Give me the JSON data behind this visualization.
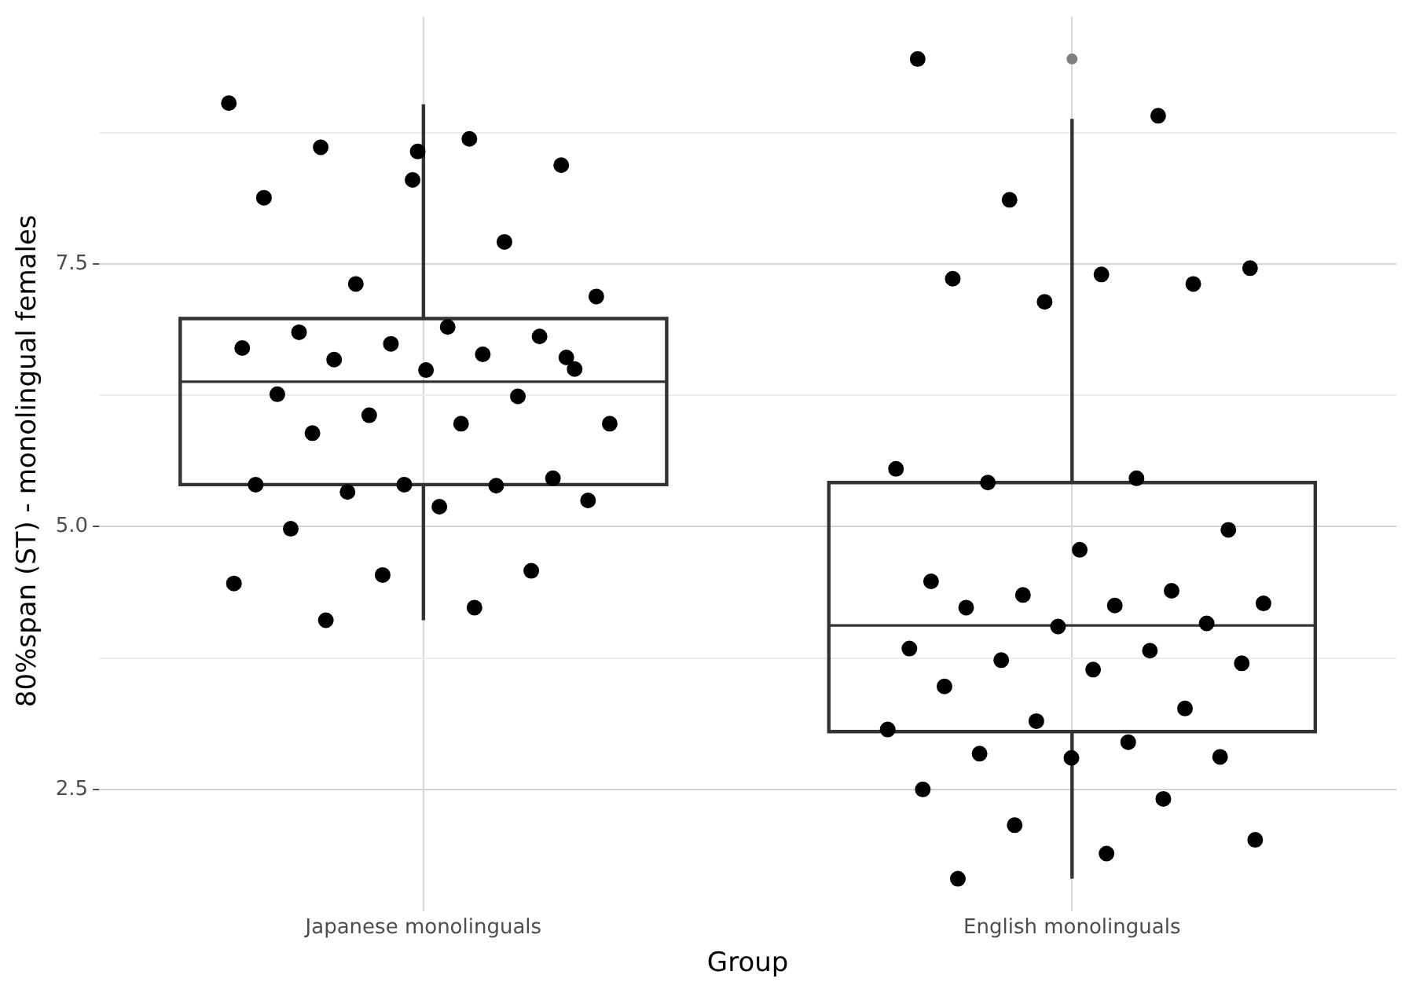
{
  "chart_data": {
    "type": "box",
    "xlabel": "Group",
    "ylabel": "80%span (ST) - monolingual females",
    "categories": [
      "Japanese monolinguals",
      "English monolinguals"
    ],
    "boxes": [
      {
        "low": 4.11,
        "q1": 5.4,
        "median": 6.38,
        "q3": 6.98,
        "high": 9.02
      },
      {
        "low": 1.65,
        "q1": 3.05,
        "median": 4.06,
        "q3": 5.42,
        "high": 8.88,
        "outliers": [
          9.45
        ]
      }
    ],
    "color": "#333333",
    "series": [
      {
        "type": "scatter",
        "color": "#000000",
        "x": [
          "Japanese monolinguals",
          "Japanese monolinguals",
          "Japanese monolinguals",
          "Japanese monolinguals",
          "Japanese monolinguals",
          "Japanese monolinguals",
          "Japanese monolinguals",
          "Japanese monolinguals",
          "Japanese monolinguals",
          "Japanese monolinguals",
          "Japanese monolinguals",
          "Japanese monolinguals",
          "Japanese monolinguals",
          "Japanese monolinguals",
          "Japanese monolinguals",
          "Japanese monolinguals",
          "Japanese monolinguals",
          "Japanese monolinguals",
          "Japanese monolinguals",
          "Japanese monolinguals",
          "Japanese monolinguals",
          "Japanese monolinguals",
          "Japanese monolinguals",
          "Japanese monolinguals",
          "Japanese monolinguals",
          "Japanese monolinguals",
          "Japanese monolinguals",
          "Japanese monolinguals",
          "Japanese monolinguals",
          "Japanese monolinguals",
          "Japanese monolinguals",
          "Japanese monolinguals",
          "Japanese monolinguals",
          "Japanese monolinguals",
          "Japanese monolinguals",
          "Japanese monolinguals",
          "Japanese monolinguals",
          "Japanese monolinguals",
          "Japanese monolinguals",
          "English monolinguals",
          "English monolinguals",
          "English monolinguals",
          "English monolinguals",
          "English monolinguals",
          "English monolinguals",
          "English monolinguals",
          "English monolinguals",
          "English monolinguals",
          "English monolinguals",
          "English monolinguals",
          "English monolinguals",
          "English monolinguals",
          "English monolinguals",
          "English monolinguals",
          "English monolinguals",
          "English monolinguals",
          "English monolinguals",
          "English monolinguals",
          "English monolinguals",
          "English monolinguals",
          "English monolinguals",
          "English monolinguals",
          "English monolinguals",
          "English monolinguals",
          "English monolinguals",
          "English monolinguals",
          "English monolinguals",
          "English monolinguals",
          "English monolinguals",
          "English monolinguals",
          "English monolinguals",
          "English monolinguals",
          "English monolinguals",
          "English monolinguals",
          "English monolinguals",
          "English monolinguals",
          "English monolinguals",
          "English monolinguals",
          "English monolinguals"
        ],
        "values": [
          9.03,
          8.69,
          8.61,
          8.44,
          8.3,
          8.13,
          7.71,
          7.31,
          7.19,
          6.9,
          6.85,
          6.81,
          6.74,
          6.7,
          6.64,
          6.59,
          6.5,
          6.49,
          6.26,
          6.24,
          6.06,
          5.98,
          5.98,
          5.89,
          5.46,
          5.4,
          5.4,
          5.39,
          5.33,
          5.25,
          5.19,
          4.98,
          4.58,
          4.54,
          4.46,
          4.23,
          4.11,
          6.61,
          8.57,
          9.45,
          8.91,
          8.11,
          7.46,
          7.4,
          7.36,
          7.31,
          7.14,
          5.55,
          5.46,
          5.42,
          4.97,
          4.78,
          4.48,
          4.39,
          4.35,
          4.27,
          4.25,
          4.23,
          4.08,
          4.05,
          3.84,
          3.82,
          3.73,
          3.7,
          3.64,
          3.48,
          3.27,
          3.15,
          3.07,
          2.95,
          2.84,
          2.81,
          2.8,
          2.5,
          2.41,
          2.16,
          2.02,
          1.89,
          1.65
        ]
      }
    ],
    "ylim": [
      1.4,
      9.85
    ],
    "yticks": [
      2.5,
      {
        "value": 3.75,
        "label": null
      },
      {
        "value": 5,
        "label": "5.0"
      },
      {
        "value": 6.25,
        "label": null
      },
      7.5,
      {
        "value": 8.75,
        "label": null
      }
    ],
    "grid": true,
    "legend": false,
    "marker": "circle"
  }
}
